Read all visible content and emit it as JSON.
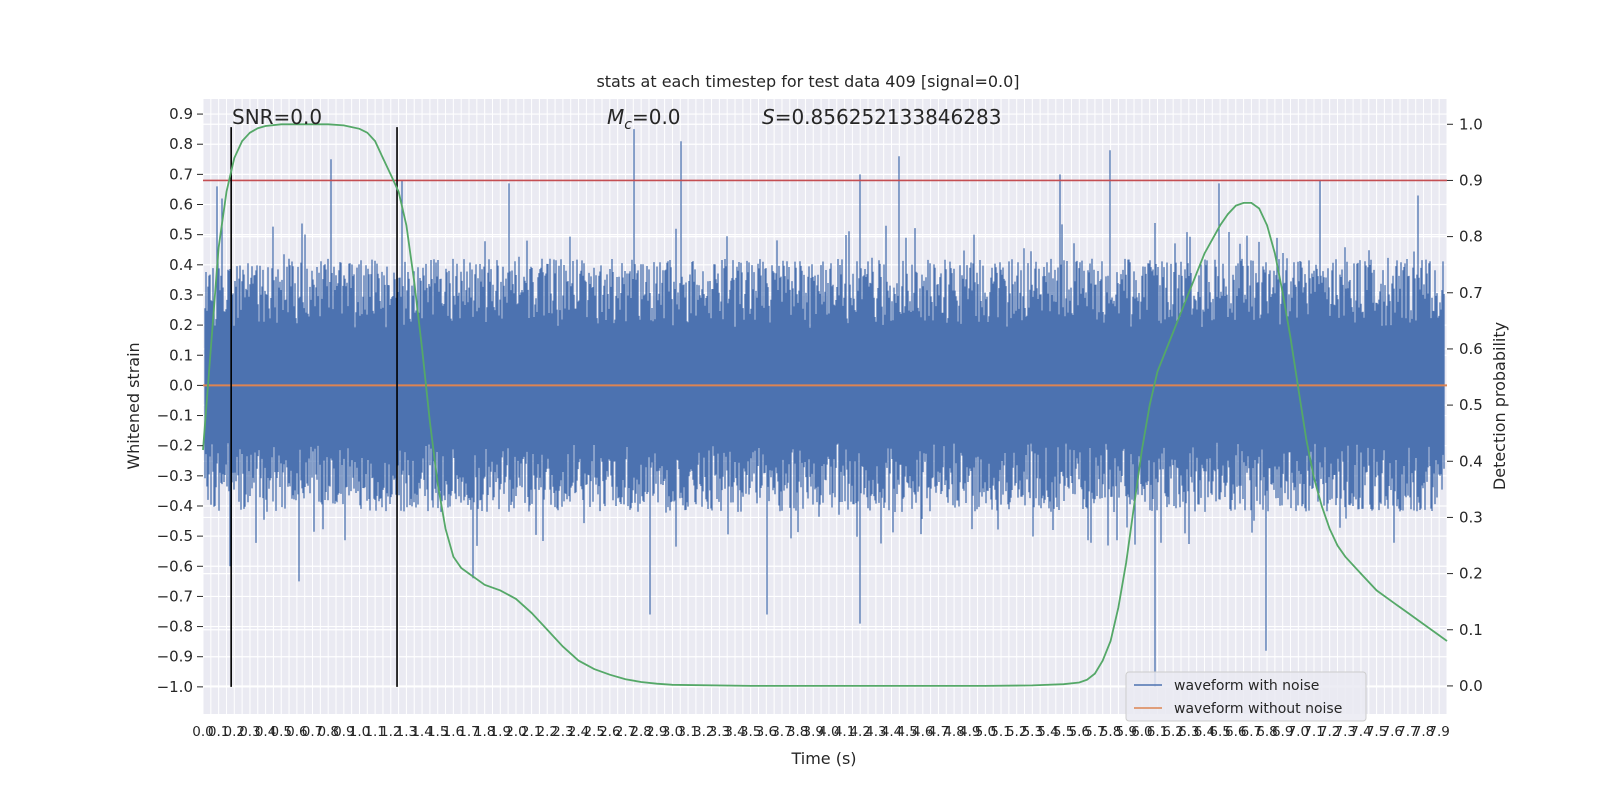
{
  "chart_data": {
    "type": "line",
    "title": "stats at each timestep for test data 409 [signal=0.0]",
    "xlabel": "Time (s)",
    "ylabel": "Whitened strain",
    "ylabel_right": "Detection probability",
    "xlim": [
      0.0,
      7.95
    ],
    "ylim": [
      -1.09,
      0.95
    ],
    "ylim_right": [
      -0.05,
      1.045
    ],
    "grid": true,
    "legend_position": "lower-right",
    "x_tick_step": 0.05,
    "y_ticks": [
      0.9,
      0.8,
      0.7,
      0.6,
      0.5,
      0.4,
      0.3,
      0.2,
      0.1,
      0.0,
      -0.1,
      -0.2,
      -0.3,
      -0.4,
      -0.5,
      -0.6,
      -0.7,
      -0.8,
      -0.9,
      -1.0
    ],
    "y_tick_labels": [
      "0.9",
      "0.8",
      "0.7",
      "0.6",
      "0.5",
      "0.4",
      "0.3",
      "0.2",
      "0.1",
      "0.0",
      "−0.1",
      "−0.2",
      "−0.3",
      "−0.4",
      "−0.5",
      "−0.6",
      "−0.7",
      "−0.8",
      "−0.9",
      "−1.0"
    ],
    "y_right_ticks": [
      1.0,
      0.9,
      0.8,
      0.7,
      0.6,
      0.5,
      0.4,
      0.3,
      0.2,
      0.1,
      0.0
    ],
    "y_right_tick_labels": [
      "1.0",
      "0.9",
      "0.8",
      "0.7",
      "0.6",
      "0.5",
      "0.4",
      "0.3",
      "0.2",
      "0.1",
      "0.0"
    ],
    "x_tick_labels": [
      "0.0",
      "0.1",
      "0.2",
      "0.3",
      "0.4",
      "0.5",
      "0.6",
      "0.7",
      "0.8",
      "0.9",
      "1.0",
      "1.1",
      "1.2",
      "1.3",
      "1.4",
      "1.5",
      "1.6",
      "1.7",
      "1.8",
      "1.9",
      "2.0",
      "2.1",
      "2.2",
      "2.3",
      "2.4",
      "2.5",
      "2.6",
      "2.7",
      "2.8",
      "2.9",
      "3.0",
      "3.1",
      "3.2",
      "3.3",
      "3.4",
      "3.5",
      "3.6",
      "3.7",
      "3.8",
      "3.9",
      "4.0",
      "4.1",
      "4.2",
      "4.3",
      "4.4",
      "4.5",
      "4.6",
      "4.7",
      "4.8",
      "4.9",
      "5.0",
      "5.1",
      "5.2",
      "5.3",
      "5.4",
      "5.5",
      "5.6",
      "5.7",
      "5.8",
      "5.9",
      "6.0",
      "6.1",
      "6.2",
      "6.3",
      "6.4",
      "6.5",
      "6.6",
      "6.7",
      "6.8",
      "6.9",
      "7.0",
      "7.1",
      "7.2",
      "7.3",
      "7.4",
      "7.5",
      "7.6",
      "7.7",
      "7.8",
      "7.9"
    ],
    "annotations": {
      "snr": "SNR=0.0",
      "mc_symbol": "M",
      "mc_subscript": "c",
      "mc_value": "=0.0",
      "s_symbol": "S",
      "s_value": "=0.856252133846283"
    },
    "threshold_line": {
      "y_right": 0.9,
      "color": "#c44e52"
    },
    "vertical_markers": {
      "x": [
        0.18,
        1.24
      ],
      "color": "#000000"
    },
    "series": [
      {
        "name": "waveform with noise",
        "color": "#4c72b0",
        "axis": "left",
        "envelope_peaks": [
          {
            "x": 0.08,
            "y": 0.66
          },
          {
            "x": 0.11,
            "y": 0.62
          },
          {
            "x": 0.26,
            "y": 0.32
          },
          {
            "x": 0.81,
            "y": 0.75
          },
          {
            "x": 1.26,
            "y": 0.68
          },
          {
            "x": 1.95,
            "y": 0.67
          },
          {
            "x": 2.75,
            "y": 0.85
          },
          {
            "x": 3.05,
            "y": 0.81
          },
          {
            "x": 4.2,
            "y": 0.7
          },
          {
            "x": 4.45,
            "y": 0.76
          },
          {
            "x": 5.48,
            "y": 0.7
          },
          {
            "x": 5.8,
            "y": 0.78
          },
          {
            "x": 6.5,
            "y": 0.67
          },
          {
            "x": 7.15,
            "y": 0.68
          },
          {
            "x": 7.78,
            "y": 0.63
          }
        ],
        "envelope_troughs": [
          {
            "x": 0.16,
            "y": -0.6
          },
          {
            "x": 0.6,
            "y": -0.65
          },
          {
            "x": 1.72,
            "y": -0.64
          },
          {
            "x": 2.85,
            "y": -0.76
          },
          {
            "x": 3.6,
            "y": -0.76
          },
          {
            "x": 4.2,
            "y": -0.79
          },
          {
            "x": 6.09,
            "y": -1.0
          },
          {
            "x": 6.8,
            "y": -0.88
          }
        ],
        "typical_amplitude": 0.42
      },
      {
        "name": "waveform without noise",
        "color": "#dd8452",
        "axis": "left",
        "x": [
          0.0,
          7.95
        ],
        "y": [
          0.0,
          0.0
        ]
      },
      {
        "color": "#55a868",
        "axis": "right",
        "x": [
          0.0,
          0.05,
          0.1,
          0.15,
          0.2,
          0.25,
          0.3,
          0.35,
          0.4,
          0.5,
          0.6,
          0.7,
          0.8,
          0.9,
          1.0,
          1.05,
          1.1,
          1.15,
          1.2,
          1.25,
          1.3,
          1.35,
          1.4,
          1.45,
          1.5,
          1.55,
          1.6,
          1.65,
          1.7,
          1.75,
          1.8,
          1.9,
          2.0,
          2.1,
          2.2,
          2.3,
          2.4,
          2.5,
          2.6,
          2.7,
          2.8,
          2.9,
          3.0,
          3.5,
          4.0,
          4.5,
          5.0,
          5.3,
          5.5,
          5.6,
          5.65,
          5.7,
          5.75,
          5.8,
          5.85,
          5.9,
          5.95,
          6.0,
          6.05,
          6.1,
          6.2,
          6.3,
          6.4,
          6.5,
          6.55,
          6.6,
          6.65,
          6.7,
          6.75,
          6.8,
          6.85,
          6.9,
          6.95,
          7.0,
          7.05,
          7.1,
          7.15,
          7.2,
          7.25,
          7.3,
          7.4,
          7.5,
          7.6,
          7.7,
          7.8,
          7.9,
          7.95
        ],
        "y": [
          0.42,
          0.6,
          0.78,
          0.88,
          0.94,
          0.97,
          0.985,
          0.993,
          0.997,
          1.0,
          1.0,
          1.0,
          1.0,
          0.998,
          0.992,
          0.985,
          0.97,
          0.94,
          0.91,
          0.88,
          0.82,
          0.72,
          0.6,
          0.47,
          0.36,
          0.28,
          0.23,
          0.21,
          0.2,
          0.19,
          0.18,
          0.17,
          0.155,
          0.13,
          0.1,
          0.07,
          0.045,
          0.03,
          0.02,
          0.012,
          0.007,
          0.004,
          0.002,
          0.0,
          0.0,
          0.0,
          0.0,
          0.001,
          0.003,
          0.006,
          0.011,
          0.022,
          0.045,
          0.08,
          0.14,
          0.22,
          0.32,
          0.42,
          0.5,
          0.56,
          0.63,
          0.7,
          0.77,
          0.82,
          0.84,
          0.855,
          0.86,
          0.86,
          0.85,
          0.82,
          0.77,
          0.7,
          0.62,
          0.53,
          0.44,
          0.37,
          0.32,
          0.28,
          0.25,
          0.23,
          0.2,
          0.17,
          0.15,
          0.13,
          0.11,
          0.09,
          0.08
        ]
      }
    ]
  }
}
